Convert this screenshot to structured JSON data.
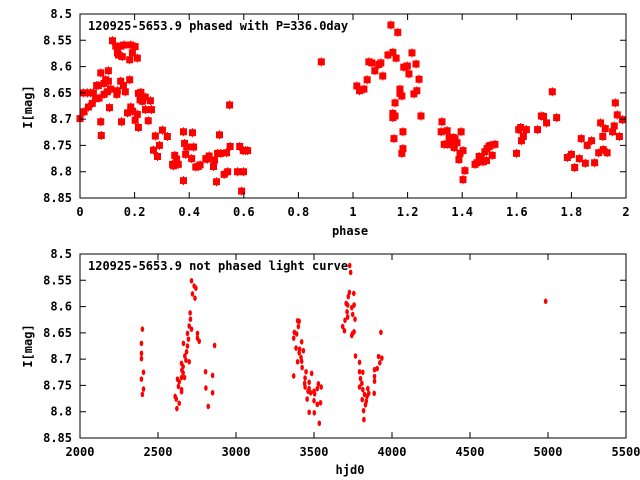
{
  "chart_data": [
    {
      "type": "scatter",
      "title": "120925-5653.9 phased with P=336.0day",
      "xlabel": "phase",
      "ylabel": "I[mag]",
      "xlim": [
        0,
        2
      ],
      "ylim": [
        8.5,
        8.85
      ],
      "y_inverted": true,
      "grid": false,
      "xticks": [
        0,
        0.2,
        0.4,
        0.6,
        0.8,
        1,
        1.2,
        1.4,
        1.6,
        1.8,
        2
      ],
      "xtick_labels": [
        "0",
        "0.2",
        "0.4",
        "0.6",
        "0.8",
        "1",
        "1.2",
        "1.4",
        "1.6",
        "1.8",
        "2"
      ],
      "yticks": [
        8.5,
        8.55,
        8.6,
        8.65,
        8.7,
        8.75,
        8.8,
        8.85
      ],
      "ytick_labels": [
        "8.5",
        "8.55",
        "8.6",
        "8.65",
        "8.7",
        "8.75",
        "8.8",
        "8.85"
      ],
      "color": "#ff0000",
      "points": [
        [
          0.0,
          8.699
        ],
        [
          0.015,
          8.686
        ],
        [
          0.012,
          8.65
        ],
        [
          0.027,
          8.65
        ],
        [
          0.039,
          8.65
        ],
        [
          0.049,
          8.65
        ],
        [
          0.031,
          8.677
        ],
        [
          0.045,
          8.67
        ],
        [
          0.057,
          8.661
        ],
        [
          0.07,
          8.66
        ],
        [
          0.061,
          8.636
        ],
        [
          0.067,
          8.636
        ],
        [
          0.076,
          8.612
        ],
        [
          0.076,
          8.705
        ],
        [
          0.078,
          8.731
        ],
        [
          0.088,
          8.653
        ],
        [
          0.088,
          8.632
        ],
        [
          0.094,
          8.625
        ],
        [
          0.1,
          8.648
        ],
        [
          0.104,
          8.628
        ],
        [
          0.104,
          8.608
        ],
        [
          0.108,
          8.678
        ],
        [
          0.113,
          8.643
        ],
        [
          0.119,
          8.551
        ],
        [
          0.131,
          8.561
        ],
        [
          0.137,
          8.574
        ],
        [
          0.141,
          8.578
        ],
        [
          0.135,
          8.653
        ],
        [
          0.137,
          8.646
        ],
        [
          0.149,
          8.628
        ],
        [
          0.149,
          8.561
        ],
        [
          0.155,
          8.581
        ],
        [
          0.159,
          8.636
        ],
        [
          0.161,
          8.559
        ],
        [
          0.166,
          8.648
        ],
        [
          0.152,
          8.705
        ],
        [
          0.174,
          8.688
        ],
        [
          0.182,
          8.587
        ],
        [
          0.182,
          8.625
        ],
        [
          0.186,
          8.559
        ],
        [
          0.186,
          8.677
        ],
        [
          0.192,
          8.574
        ],
        [
          0.193,
          8.685
        ],
        [
          0.202,
          8.562
        ],
        [
          0.202,
          8.702
        ],
        [
          0.21,
          8.584
        ],
        [
          0.21,
          8.691
        ],
        [
          0.214,
          8.716
        ],
        [
          0.214,
          8.651
        ],
        [
          0.22,
          8.663
        ],
        [
          0.223,
          8.649
        ],
        [
          0.228,
          8.666
        ],
        [
          0.23,
          8.664
        ],
        [
          0.239,
          8.658
        ],
        [
          0.24,
          8.682
        ],
        [
          0.25,
          8.703
        ],
        [
          0.258,
          8.665
        ],
        [
          0.262,
          8.682
        ],
        [
          0.269,
          8.759
        ],
        [
          0.276,
          8.732
        ],
        [
          0.284,
          8.771
        ],
        [
          0.291,
          8.75
        ],
        [
          0.302,
          8.721
        ],
        [
          0.32,
          8.733
        ],
        [
          0.339,
          8.786
        ],
        [
          0.343,
          8.789
        ],
        [
          0.347,
          8.769
        ],
        [
          0.354,
          8.776
        ],
        [
          0.36,
          8.786
        ],
        [
          0.379,
          8.817
        ],
        [
          0.379,
          8.724
        ],
        [
          0.383,
          8.746
        ],
        [
          0.387,
          8.767
        ],
        [
          0.391,
          8.753
        ],
        [
          0.409,
          8.775
        ],
        [
          0.412,
          8.726
        ],
        [
          0.416,
          8.753
        ],
        [
          0.424,
          8.791
        ],
        [
          0.433,
          8.79
        ],
        [
          0.44,
          8.787
        ],
        [
          0.461,
          8.775
        ],
        [
          0.467,
          8.776
        ],
        [
          0.473,
          8.77
        ],
        [
          0.489,
          8.79
        ],
        [
          0.493,
          8.778
        ],
        [
          0.5,
          8.819
        ],
        [
          0.504,
          8.765
        ],
        [
          0.511,
          8.73
        ],
        [
          0.516,
          8.765
        ],
        [
          0.528,
          8.805
        ],
        [
          0.537,
          8.764
        ],
        [
          0.541,
          8.8
        ],
        [
          0.548,
          8.673
        ],
        [
          0.55,
          8.752
        ],
        [
          0.577,
          8.8
        ],
        [
          0.585,
          8.752
        ],
        [
          0.592,
          8.837
        ],
        [
          0.598,
          8.76
        ],
        [
          0.599,
          8.8
        ],
        [
          0.606,
          8.76
        ],
        [
          0.614,
          8.76
        ],
        [
          0.884,
          8.591
        ],
        [
          1.014,
          8.637
        ],
        [
          1.024,
          8.646
        ],
        [
          1.04,
          8.643
        ],
        [
          1.052,
          8.625
        ],
        [
          1.058,
          8.591
        ],
        [
          1.069,
          8.593
        ],
        [
          1.08,
          8.608
        ],
        [
          1.095,
          8.596
        ],
        [
          1.102,
          8.593
        ],
        [
          1.109,
          8.618
        ],
        [
          1.128,
          8.578
        ],
        [
          1.139,
          8.521
        ],
        [
          1.146,
          8.573
        ],
        [
          1.146,
          8.689
        ],
        [
          1.146,
          8.697
        ],
        [
          1.15,
          8.737
        ],
        [
          1.154,
          8.669
        ],
        [
          1.154,
          8.694
        ],
        [
          1.158,
          8.584
        ],
        [
          1.164,
          8.535
        ],
        [
          1.172,
          8.643
        ],
        [
          1.172,
          8.651
        ],
        [
          1.179,
          8.656
        ],
        [
          1.183,
          8.724
        ],
        [
          1.183,
          8.756
        ],
        [
          1.179,
          8.765
        ],
        [
          1.186,
          8.601
        ],
        [
          1.199,
          8.599
        ],
        [
          1.205,
          8.614
        ],
        [
          1.216,
          8.574
        ],
        [
          1.223,
          8.652
        ],
        [
          1.231,
          8.595
        ],
        [
          1.234,
          8.646
        ],
        [
          1.242,
          8.624
        ],
        [
          1.249,
          8.694
        ],
        [
          1.323,
          8.724
        ],
        [
          1.326,
          8.705
        ],
        [
          1.334,
          8.748
        ],
        [
          1.345,
          8.722
        ],
        [
          1.345,
          8.748
        ],
        [
          1.352,
          8.735
        ],
        [
          1.356,
          8.748
        ],
        [
          1.367,
          8.735
        ],
        [
          1.374,
          8.737
        ],
        [
          1.371,
          8.754
        ],
        [
          1.381,
          8.745
        ],
        [
          1.388,
          8.777
        ],
        [
          1.392,
          8.765
        ],
        [
          1.396,
          8.724
        ],
        [
          1.403,
          8.76
        ],
        [
          1.403,
          8.815
        ],
        [
          1.41,
          8.798
        ],
        [
          1.447,
          8.786
        ],
        [
          1.454,
          8.783
        ],
        [
          1.462,
          8.771
        ],
        [
          1.469,
          8.773
        ],
        [
          1.476,
          8.781
        ],
        [
          1.483,
          8.762
        ],
        [
          1.489,
          8.779
        ],
        [
          1.491,
          8.756
        ],
        [
          1.498,
          8.752
        ],
        [
          1.503,
          8.75
        ],
        [
          1.51,
          8.769
        ],
        [
          1.52,
          8.748
        ],
        [
          1.599,
          8.765
        ],
        [
          1.607,
          8.72
        ],
        [
          1.614,
          8.716
        ],
        [
          1.617,
          8.741
        ],
        [
          1.624,
          8.733
        ],
        [
          1.635,
          8.72
        ],
        [
          1.676,
          8.72
        ],
        [
          1.69,
          8.694
        ],
        [
          1.698,
          8.695
        ],
        [
          1.709,
          8.707
        ],
        [
          1.73,
          8.648
        ],
        [
          1.746,
          8.697
        ],
        [
          1.785,
          8.773
        ],
        [
          1.8,
          8.767
        ],
        [
          1.812,
          8.792
        ],
        [
          1.829,
          8.775
        ],
        [
          1.836,
          8.737
        ],
        [
          1.851,
          8.784
        ],
        [
          1.858,
          8.75
        ],
        [
          1.874,
          8.741
        ],
        [
          1.885,
          8.783
        ],
        [
          1.9,
          8.764
        ],
        [
          1.907,
          8.707
        ],
        [
          1.915,
          8.733
        ],
        [
          1.917,
          8.758
        ],
        [
          1.924,
          8.718
        ],
        [
          1.931,
          8.764
        ],
        [
          1.951,
          8.724
        ],
        [
          1.957,
          8.713
        ],
        [
          1.961,
          8.669
        ],
        [
          1.968,
          8.692
        ],
        [
          1.976,
          8.733
        ],
        [
          1.987,
          8.701
        ]
      ]
    },
    {
      "type": "scatter",
      "title": "120925-5653.9 not phased light curve",
      "xlabel": "hjd0",
      "ylabel": "I[mag]",
      "xlim": [
        2000,
        5500
      ],
      "ylim": [
        8.5,
        8.85
      ],
      "y_inverted": true,
      "grid": false,
      "xticks": [
        2000,
        2500,
        3000,
        3500,
        4000,
        4500,
        5000,
        5500
      ],
      "xtick_labels": [
        "2000",
        "2500",
        "3000",
        "3500",
        "4000",
        "4500",
        "5000",
        "5500"
      ],
      "yticks": [
        8.5,
        8.55,
        8.6,
        8.65,
        8.7,
        8.75,
        8.8,
        8.85
      ],
      "ytick_labels": [
        "8.5",
        "8.55",
        "8.6",
        "8.65",
        "8.7",
        "8.75",
        "8.8",
        "8.85"
      ],
      "color": "#ff0000",
      "points": [
        [
          2400,
          8.643
        ],
        [
          2394,
          8.67
        ],
        [
          2394,
          8.689
        ],
        [
          2394,
          8.699
        ],
        [
          2407,
          8.725
        ],
        [
          2394,
          8.738
        ],
        [
          2407,
          8.757
        ],
        [
          2400,
          8.767
        ],
        [
          2715,
          8.551
        ],
        [
          2732,
          8.561
        ],
        [
          2743,
          8.565
        ],
        [
          2721,
          8.576
        ],
        [
          2737,
          8.584
        ],
        [
          2706,
          8.612
        ],
        [
          2708,
          8.624
        ],
        [
          2700,
          8.637
        ],
        [
          2715,
          8.643
        ],
        [
          2689,
          8.651
        ],
        [
          2753,
          8.651
        ],
        [
          2753,
          8.66
        ],
        [
          2764,
          8.666
        ],
        [
          2695,
          8.662
        ],
        [
          2663,
          8.67
        ],
        [
          2689,
          8.675
        ],
        [
          2683,
          8.686
        ],
        [
          2672,
          8.694
        ],
        [
          2679,
          8.702
        ],
        [
          2700,
          8.705
        ],
        [
          2651,
          8.708
        ],
        [
          2661,
          8.714
        ],
        [
          2653,
          8.721
        ],
        [
          2661,
          8.726
        ],
        [
          2651,
          8.735
        ],
        [
          2670,
          8.735
        ],
        [
          2625,
          8.738
        ],
        [
          2636,
          8.743
        ],
        [
          2631,
          8.752
        ],
        [
          2651,
          8.758
        ],
        [
          2651,
          8.762
        ],
        [
          2610,
          8.771
        ],
        [
          2617,
          8.776
        ],
        [
          2636,
          8.784
        ],
        [
          2621,
          8.794
        ],
        [
          2863,
          8.674
        ],
        [
          2805,
          8.724
        ],
        [
          2850,
          8.731
        ],
        [
          2807,
          8.755
        ],
        [
          2850,
          8.764
        ],
        [
          2822,
          8.79
        ],
        [
          3395,
          8.627
        ],
        [
          3405,
          8.628
        ],
        [
          3400,
          8.638
        ],
        [
          3374,
          8.649
        ],
        [
          3389,
          8.652
        ],
        [
          3370,
          8.66
        ],
        [
          3421,
          8.667
        ],
        [
          3385,
          8.679
        ],
        [
          3408,
          8.681
        ],
        [
          3432,
          8.684
        ],
        [
          3405,
          8.688
        ],
        [
          3417,
          8.697
        ],
        [
          3370,
          8.732
        ],
        [
          3395,
          8.705
        ],
        [
          3421,
          8.704
        ],
        [
          3424,
          8.716
        ],
        [
          3449,
          8.724
        ],
        [
          3485,
          8.727
        ],
        [
          3443,
          8.736
        ],
        [
          3469,
          8.744
        ],
        [
          3440,
          8.746
        ],
        [
          3443,
          8.753
        ],
        [
          3469,
          8.756
        ],
        [
          3462,
          8.761
        ],
        [
          3479,
          8.764
        ],
        [
          3500,
          8.761
        ],
        [
          3521,
          8.756
        ],
        [
          3528,
          8.747
        ],
        [
          3546,
          8.753
        ],
        [
          3504,
          8.766
        ],
        [
          3456,
          8.776
        ],
        [
          3500,
          8.779
        ],
        [
          3521,
          8.786
        ],
        [
          3542,
          8.783
        ],
        [
          3469,
          8.801
        ],
        [
          3502,
          8.802
        ],
        [
          3534,
          8.822
        ],
        [
          3729,
          8.522
        ],
        [
          3735,
          8.535
        ],
        [
          3727,
          8.573
        ],
        [
          3755,
          8.575
        ],
        [
          3720,
          8.581
        ],
        [
          3706,
          8.594
        ],
        [
          3716,
          8.597
        ],
        [
          3757,
          8.597
        ],
        [
          3742,
          8.602
        ],
        [
          3712,
          8.61
        ],
        [
          3748,
          8.615
        ],
        [
          3699,
          8.626
        ],
        [
          3763,
          8.624
        ],
        [
          3716,
          8.62
        ],
        [
          3684,
          8.638
        ],
        [
          3695,
          8.646
        ],
        [
          3748,
          8.651
        ],
        [
          3757,
          8.648
        ],
        [
          3742,
          8.655
        ],
        [
          3929,
          8.649
        ],
        [
          3766,
          8.694
        ],
        [
          3792,
          8.706
        ],
        [
          3914,
          8.695
        ],
        [
          3935,
          8.698
        ],
        [
          3922,
          8.707
        ],
        [
          3792,
          8.724
        ],
        [
          3813,
          8.725
        ],
        [
          3888,
          8.72
        ],
        [
          3905,
          8.718
        ],
        [
          3798,
          8.737
        ],
        [
          3888,
          8.733
        ],
        [
          3888,
          8.742
        ],
        [
          3807,
          8.746
        ],
        [
          3792,
          8.753
        ],
        [
          3813,
          8.758
        ],
        [
          3845,
          8.756
        ],
        [
          3851,
          8.765
        ],
        [
          3824,
          8.767
        ],
        [
          3840,
          8.771
        ],
        [
          3809,
          8.777
        ],
        [
          3886,
          8.765
        ],
        [
          3835,
          8.78
        ],
        [
          3830,
          8.787
        ],
        [
          3818,
          8.798
        ],
        [
          3820,
          8.815
        ],
        [
          4985,
          8.59
        ]
      ]
    }
  ]
}
